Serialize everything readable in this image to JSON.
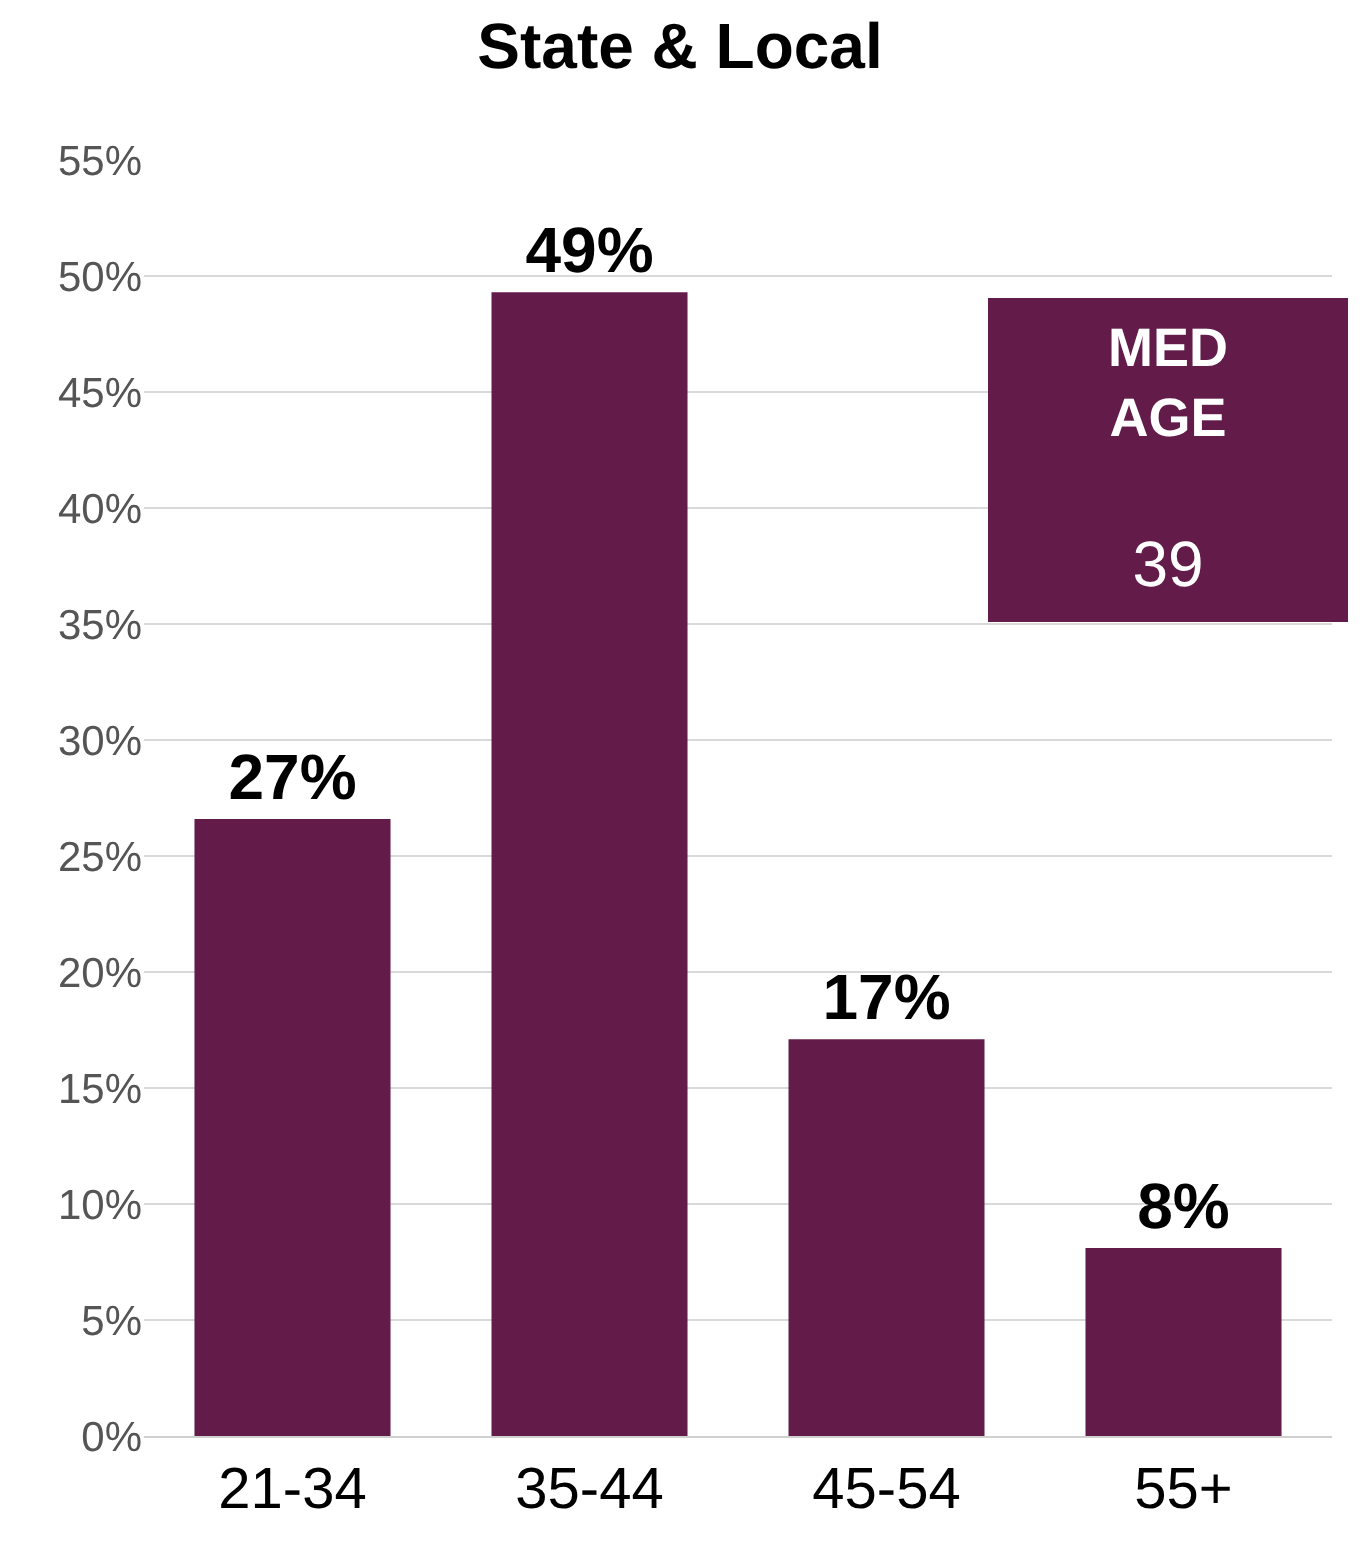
{
  "chart_data": {
    "type": "bar",
    "title": "State & Local",
    "categories": [
      "21-34",
      "35-44",
      "45-54",
      "55+"
    ],
    "values": [
      26.6,
      49.3,
      17.1,
      8.1
    ],
    "value_labels": [
      "27%",
      "49%",
      "17%",
      "8%"
    ],
    "color": "#631c4a",
    "ylim": [
      0,
      55
    ],
    "yticks": [
      {
        "value": 0,
        "label": "0%"
      },
      {
        "value": 5,
        "label": "5%"
      },
      {
        "value": 10,
        "label": "10%"
      },
      {
        "value": 15,
        "label": "15%"
      },
      {
        "value": 20,
        "label": "20%"
      },
      {
        "value": 25,
        "label": "25%"
      },
      {
        "value": 30,
        "label": "30%"
      },
      {
        "value": 35,
        "label": "35%"
      },
      {
        "value": 40,
        "label": "40%"
      },
      {
        "value": 45,
        "label": "45%"
      },
      {
        "value": 50,
        "label": "50%"
      },
      {
        "value": 55,
        "label": "55%"
      }
    ],
    "grid": "y",
    "annotations": [
      "MED AGE",
      "39"
    ]
  }
}
